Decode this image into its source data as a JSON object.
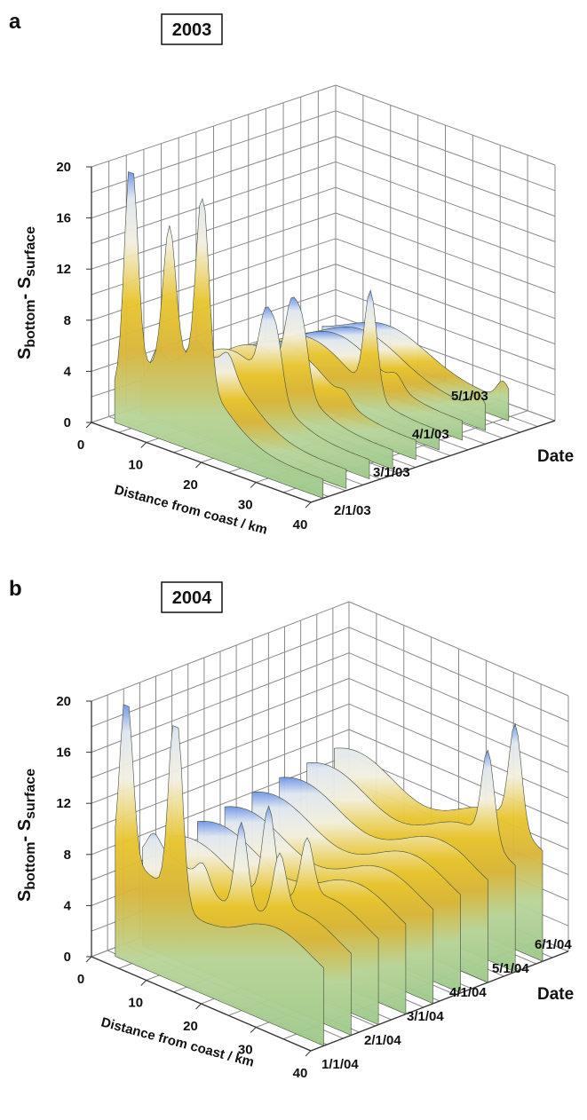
{
  "chart_data": [
    {
      "type": "surface3d",
      "panel_label": "a",
      "title": "2003",
      "zlabel_main": "S",
      "zlabel_sub1": "bottom",
      "zlabel_dash": "- S",
      "zlabel_sub2": "surface",
      "xlabel": "Distance from coast / km",
      "ylabel": "Date",
      "z_ticks": [
        "0",
        "4",
        "8",
        "12",
        "16",
        "20"
      ],
      "x_ticks": [
        "0",
        "10",
        "20",
        "30",
        "40"
      ],
      "date_ticks": [
        "2/1/03",
        "3/1/03",
        "4/1/03",
        "5/1/03"
      ],
      "zlim": [
        0,
        20
      ],
      "xlim": [
        0,
        40
      ],
      "grid": true,
      "approx_peaks": [
        {
          "distance_km": 5,
          "date": "2/1/03",
          "value": 20
        },
        {
          "distance_km": 12,
          "date": "2/1/03",
          "value": 13
        },
        {
          "distance_km": 18,
          "date": "2/1/03",
          "value": 17
        },
        {
          "distance_km": 20,
          "date": "3/1/03",
          "value": 11
        },
        {
          "distance_km": 22,
          "date": "3/1/03",
          "value": 10
        },
        {
          "distance_km": 25,
          "date": "4/1/03",
          "value": 9
        },
        {
          "distance_km": 35,
          "date": "5/1/03",
          "value": 3
        }
      ]
    },
    {
      "type": "surface3d",
      "panel_label": "b",
      "title": "2004",
      "zlabel_main": "S",
      "zlabel_sub1": "bottom",
      "zlabel_dash": "- S",
      "zlabel_sub2": "surface",
      "xlabel": "Distance from coast / km",
      "ylabel": "Date",
      "z_ticks": [
        "0",
        "4",
        "8",
        "12",
        "16",
        "20"
      ],
      "x_ticks": [
        "0",
        "10",
        "20",
        "30",
        "40"
      ],
      "date_ticks": [
        "1/1/04",
        "2/1/04",
        "3/1/04",
        "4/1/04",
        "5/1/04",
        "6/1/04"
      ],
      "zlim": [
        0,
        20
      ],
      "xlim": [
        0,
        40
      ],
      "grid": true,
      "approx_peaks": [
        {
          "distance_km": 4,
          "date": "1/1/04",
          "value": 17
        },
        {
          "distance_km": 13,
          "date": "1/1/04",
          "value": 19
        },
        {
          "distance_km": 20,
          "date": "2/1/04",
          "value": 15
        },
        {
          "distance_km": 27,
          "date": "2/1/04",
          "value": 11
        },
        {
          "distance_km": 35,
          "date": "6/1/04",
          "value": 17
        }
      ]
    }
  ]
}
